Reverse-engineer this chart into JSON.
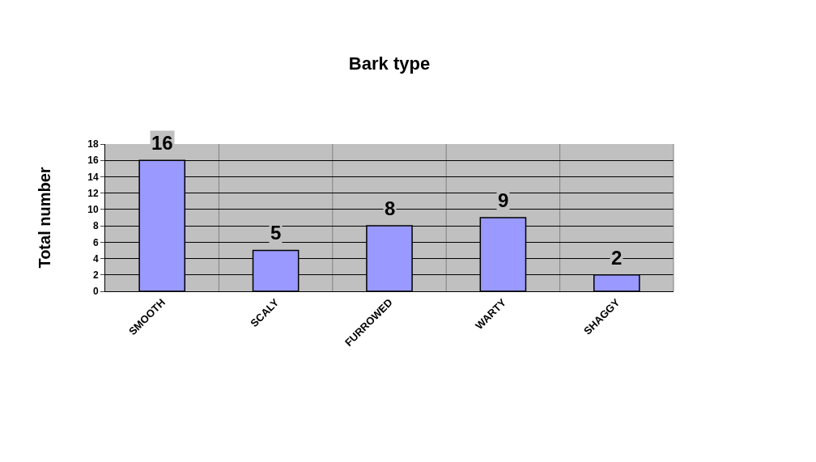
{
  "chart_data": {
    "type": "bar",
    "title": "Bark type",
    "ylabel": "Total number",
    "categories": [
      "SMOOTH",
      "SCALY",
      "FURROWED",
      "WARTY",
      "SHAGGY"
    ],
    "values": [
      16,
      5,
      8,
      9,
      2
    ],
    "color": "#9999ff",
    "ylim": [
      0,
      18
    ],
    "yticks": [
      0,
      2,
      4,
      6,
      8,
      10,
      12,
      14,
      16,
      18
    ],
    "grid": true,
    "data_labels": true
  }
}
